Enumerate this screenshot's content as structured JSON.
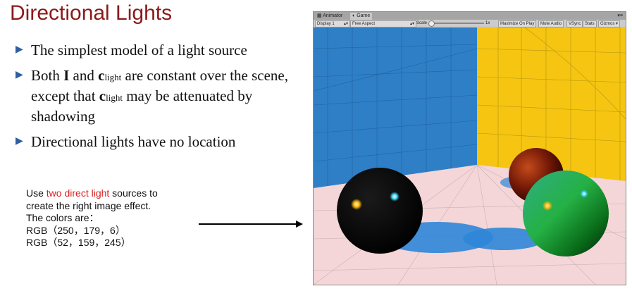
{
  "slide": {
    "title": "Directional Lights",
    "bullet_marker": "▶",
    "b1": "The simplest model of a light source",
    "b2": {
      "t1": "Both ",
      "i": "I",
      "t2": " and ",
      "c1": "c",
      "sub1": "light",
      "t3": " are constant over the scene, except that ",
      "c2": "c",
      "sub2": "light",
      "t4": " may be attenuated by shadowing"
    },
    "b3": "Directional lights have no location",
    "note": {
      "pre": "Use ",
      "red": "two direct light",
      "post": " sources to",
      "line2": "create the right image effect.",
      "line3": "The colors are：",
      "line4": "RGB（250，179，6）",
      "line5": "RGB（52，159，245）"
    }
  },
  "colors": {
    "title": "#8b1a1a",
    "highlight_red": "#d9211f",
    "light1": "#fab306",
    "light2": "#349ff5"
  },
  "unity": {
    "tab_animator": "Animator",
    "tab_game": "Game",
    "display": "Display 1",
    "aspect": "Free Aspect",
    "scale_label": "Scale",
    "scale_value": "1x",
    "maximize": "Maximize On Play",
    "mute": "Mute Audio",
    "vsync": "VSync",
    "stats": "Stats",
    "gizmos": "Gizmos"
  }
}
